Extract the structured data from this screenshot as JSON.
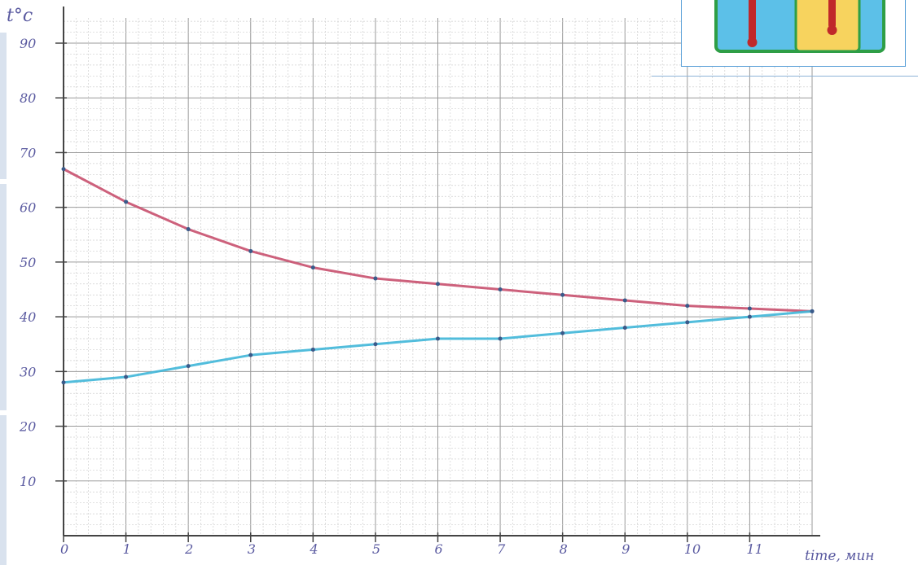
{
  "chart_data": {
    "type": "line",
    "ylabel": "t°c",
    "xlabel": "time, мин",
    "xlim": [
      0,
      12
    ],
    "ylim": [
      0,
      90
    ],
    "x_ticks": [
      {
        "value": 0,
        "label": "0"
      },
      {
        "value": 1,
        "label": "1"
      },
      {
        "value": 2,
        "label": "2"
      },
      {
        "value": 3,
        "label": "3"
      },
      {
        "value": 4,
        "label": "4"
      },
      {
        "value": 5,
        "label": "5"
      },
      {
        "value": 6,
        "label": "6"
      },
      {
        "value": 7,
        "label": "7"
      },
      {
        "value": 8,
        "label": "8"
      },
      {
        "value": 9,
        "label": "9"
      },
      {
        "value": 10,
        "label": "10"
      },
      {
        "value": 11,
        "label": "11"
      }
    ],
    "y_ticks": [
      {
        "value": 10,
        "label": "10"
      },
      {
        "value": 20,
        "label": "20"
      },
      {
        "value": 30,
        "label": "30"
      },
      {
        "value": 40,
        "label": "40"
      },
      {
        "value": 50,
        "label": "50"
      },
      {
        "value": 60,
        "label": "60"
      },
      {
        "value": 70,
        "label": "70"
      },
      {
        "value": 80,
        "label": "80"
      },
      {
        "value": 90,
        "label": "90"
      }
    ],
    "grid": true,
    "series": [
      {
        "color": "#c8506e",
        "x": [
          0,
          1,
          2,
          3,
          4,
          5,
          6,
          7,
          8,
          9,
          10,
          11,
          12
        ],
        "y": [
          67,
          61,
          56,
          52,
          49,
          47,
          46,
          45,
          44,
          43,
          42,
          41.5,
          41
        ]
      },
      {
        "color": "#3fb6d8",
        "x": [
          0,
          1,
          2,
          3,
          4,
          5,
          6,
          7,
          8,
          9,
          10,
          11,
          12
        ],
        "y": [
          28,
          29,
          31,
          33,
          34,
          35,
          36,
          36,
          37,
          38,
          39,
          40,
          41
        ]
      }
    ]
  },
  "inset": {
    "vessel_outer_color": "#5cc0e8",
    "vessel_inner_color": "#f7d35e",
    "border_color": "#2e9e46",
    "thermometer_color": "#c0282a"
  }
}
